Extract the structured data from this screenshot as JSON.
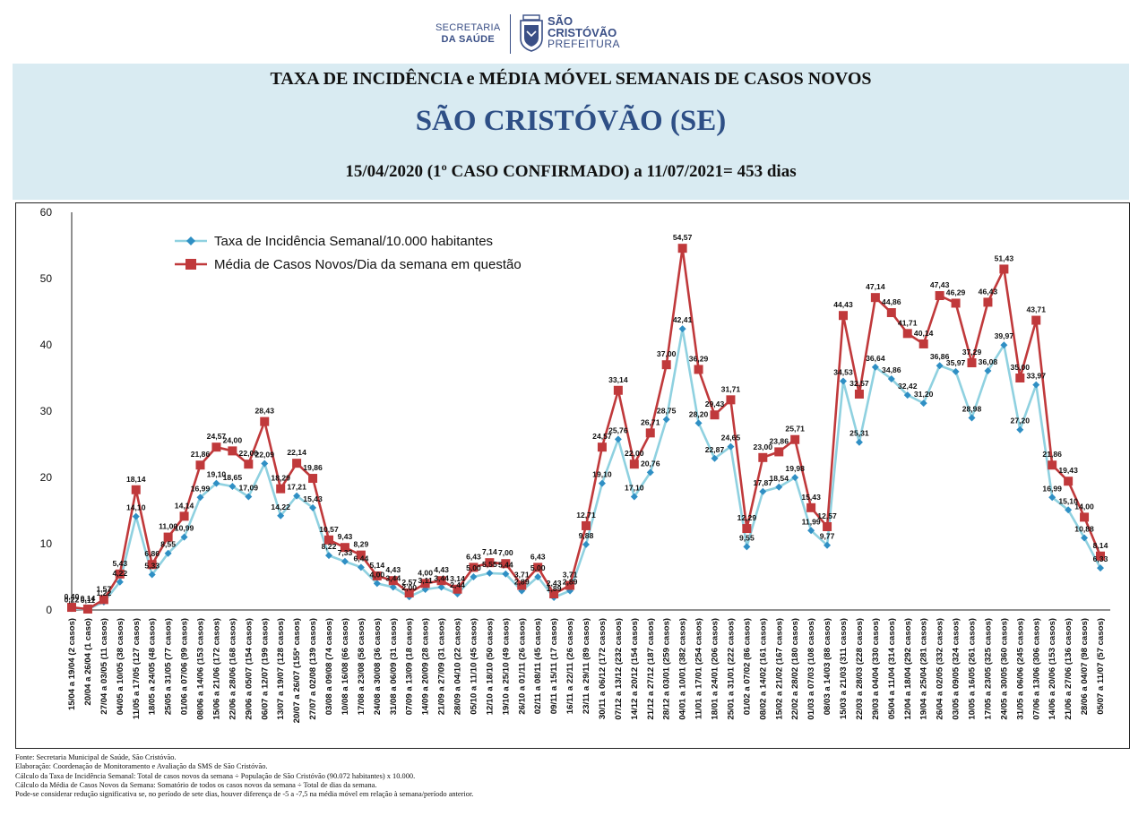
{
  "logo": {
    "secretaria_line1": "SECRETARIA",
    "secretaria_line2": "DA SAÚDE",
    "city_line1": "SÃO",
    "city_line2": "CRISTÓVÃO",
    "prefeitura": "PREFEITURA"
  },
  "header": {
    "title": "TAXA DE INCIDÊNCIA e MÉDIA MÓVEL SEMANAIS DE CASOS NOVOS",
    "city": "SÃO CRISTÓVÃO (SE)",
    "dates": "15/04/2020 (1º CASO CONFIRMADO) a 11/07/2021= 453 dias"
  },
  "colors": {
    "header_bg": "#d9ebf2",
    "title_blue": "#2e4f86",
    "incidence": "#8fd1e0",
    "incidence_marker": "#2f8fc4",
    "mean": "#c0393b"
  },
  "chart_data": {
    "type": "line",
    "ylim": [
      0,
      60
    ],
    "yticks": [
      "0",
      "10",
      "20",
      "30",
      "40",
      "50",
      "60"
    ],
    "grid": false,
    "legend_position": "top-left",
    "categories": [
      "15/04 a 19/04 (2 casos)",
      "20/04 a 26/04 (1 caso)",
      "27/04 a 03/05 (11 casos)",
      "04/05 a 10/05 (38 casos)",
      "11/05 a 17/05 (127 casos)",
      "18/05 a 24/05 (48 casos)",
      "25/05 a 31/05 (77 casos)",
      "01/06 a 07/06 (99 casos)",
      "08/06 a 14/06 (153 casos)",
      "15/06 a 21/06 (172 casos)",
      "22/06 a 28/06 (168 casos)",
      "29/06 a 05/07 (154 casos)",
      "06/07 a 12/07 (199 casos)",
      "13/07 a 19/07 (128 casos)",
      "20/07 a 26/07 (155* casos)",
      "27/07 a 02/08 (139 casos)",
      "03/08 a 09/08 (74 casos)",
      "10/08 a 16/08 (66 casos)",
      "17/08 a 23/08 (58 casos)",
      "24/08 a 30/08 (36 casos)",
      "31/08 a 06/09 (31 casos)",
      "07/09 a 13/09 (18 casos)",
      "14/09 a 20/09 (28 casos)",
      "21/09 a 27/09 (31 casos)",
      "28/09 a 04/10 (22 casos)",
      "05/10 a 11/10 (45 casos)",
      "12/10 a 18/10 (50 casos)",
      "19/10 a 25/10 (49 casos)",
      "26/10 a 01/11 (26 casos)",
      "02/11 a 08/11 (45 casos)",
      "09/11 a 15/11 (17 casos)",
      "16/11 a 22/11 (26 casos)",
      "23/11 a 29/11 (89 casos)",
      "30/11 a 06/12 (172 casos)",
      "07/12 a 13/12 (232 casos)",
      "14/12 a 20/12 (154 casos)",
      "21/12 a 27/12 (187 casos)",
      "28/12 a 03/01 (259 casos)",
      "04/01 a 10/01 (382 casos)",
      "11/01 a 17/01 (254 casos)",
      "18/01 a 24/01 (206 casos)",
      "25/01 a 31/01 (222 casos)",
      "01/02 a 07/02 (86 casos)",
      "08/02 a 14/02 (161 casos)",
      "15/02 a 21/02 (167 casos)",
      "22/02 a 28/02 (180 casos)",
      "01/03 a 07/03 (108 casos)",
      "08/03 a 14/03 (88 casos)",
      "15/03 a 21/03 (311 casos)",
      "22/03 a 28/03 (228 casos)",
      "29/03 a 04/04 (330 casos)",
      "05/04 a 11/04 (314 casos)",
      "12/04 a 18/04 (292 casos)",
      "19/04 a 25/04 (281 casos)",
      "26/04 a 02/05 (332 casos)",
      "03/05 a 09/05 (324 casos)",
      "10/05 a 16/05 (261 casos)",
      "17/05 a 23/05 (325 casos)",
      "24/05 a 30/05 (360 casos)",
      "31/05 a 06/06 (245 casos)",
      "07/06 a 13/06 (306 casos)",
      "14/06 a 20/06 (153 casos)",
      "21/06 a 27/06 (136 casos)",
      "28/06 a 04/07 (98 casos)",
      "05/07 a 11/07 (57 casos)"
    ],
    "series": [
      {
        "name": "Taxa de Incidência Semanal/10.000 habitantes",
        "values": [
          0.22,
          0.11,
          1.22,
          4.22,
          14.1,
          5.33,
          8.55,
          10.99,
          16.99,
          19.1,
          18.65,
          17.09,
          22.09,
          14.22,
          17.21,
          15.43,
          8.22,
          7.33,
          6.44,
          4.0,
          3.44,
          2.0,
          3.11,
          3.44,
          2.44,
          5.0,
          5.55,
          5.44,
          2.89,
          5.0,
          1.89,
          2.89,
          9.88,
          19.1,
          25.76,
          17.1,
          20.76,
          28.75,
          42.41,
          28.2,
          22.87,
          24.65,
          9.55,
          17.87,
          18.54,
          19.98,
          11.99,
          9.77,
          34.53,
          25.31,
          36.64,
          34.86,
          32.42,
          31.2,
          36.86,
          35.97,
          28.98,
          36.08,
          39.97,
          27.2,
          33.97,
          16.99,
          15.1,
          10.88,
          6.33
        ],
        "labels": [
          "0,22",
          "0,11",
          "1,22",
          "4,22",
          "14,10",
          "5,33",
          "8,55",
          "10,99",
          "16,99",
          "19,10",
          "18,65",
          "17,09",
          "22,09",
          "14,22",
          "17,21",
          "15,43",
          "8,22",
          "7,33",
          "6,44",
          "4,00",
          "3,44",
          "2,00",
          "3,11",
          "3,44",
          "2,44",
          "5,00",
          "5,55",
          "5,44",
          "2,89",
          "5,00",
          "1,89",
          "2,89",
          "9,88",
          "19,10",
          "25,76",
          "17,10",
          "20,76",
          "28,75",
          "42,41",
          "28,20",
          "22,87",
          "24,65",
          "9,55",
          "17,87",
          "18,54",
          "19,98",
          "11,99",
          "9,77",
          "34,53",
          "25,31",
          "36,64",
          "34,86",
          "32,42",
          "31,20",
          "36,86",
          "35,97",
          "28,98",
          "36,08",
          "39,97",
          "27,20",
          "33,97",
          "16,99",
          "15,10",
          "10,88",
          "6,33"
        ]
      },
      {
        "name": "Média de Casos Novos/Dia da semana em questão",
        "values": [
          0.4,
          0.14,
          1.57,
          5.43,
          18.14,
          6.86,
          11.0,
          14.14,
          21.86,
          24.57,
          24.0,
          22.0,
          28.43,
          18.29,
          22.14,
          19.86,
          10.57,
          9.43,
          8.29,
          5.14,
          4.43,
          2.57,
          4.0,
          4.43,
          3.14,
          6.43,
          7.14,
          7.0,
          3.71,
          6.43,
          2.43,
          3.71,
          12.71,
          24.57,
          33.14,
          22.0,
          26.71,
          37.0,
          54.57,
          36.29,
          29.43,
          31.71,
          12.29,
          23.0,
          23.86,
          25.71,
          15.43,
          12.57,
          44.43,
          32.57,
          47.14,
          44.86,
          41.71,
          40.14,
          47.43,
          46.29,
          37.29,
          46.43,
          51.43,
          35.0,
          43.71,
          21.86,
          19.43,
          14.0,
          8.14
        ],
        "labels": [
          "0,40",
          "0,14",
          "1,57",
          "5,43",
          "18,14",
          "6,86",
          "11,00",
          "14,14",
          "21,86",
          "24,57",
          "24,00",
          "22,00",
          "28,43",
          "18,29",
          "22,14",
          "19,86",
          "10,57",
          "9,43",
          "8,29",
          "5,14",
          "4,43",
          "2,57",
          "4,00",
          "4,43",
          "3,14",
          "6,43",
          "7,14",
          "7,00",
          "3,71",
          "6,43",
          "2,43",
          "3,71",
          "12,71",
          "24,57",
          "33,14",
          "22,00",
          "26,71",
          "37,00",
          "54,57",
          "36,29",
          "29,43",
          "31,71",
          "12,29",
          "23,00",
          "23,86",
          "25,71",
          "15,43",
          "12,57",
          "44,43",
          "32,57",
          "47,14",
          "44,86",
          "41,71",
          "40,14",
          "47,43",
          "46,29",
          "37,29",
          "46,43",
          "51,43",
          "35,00",
          "43,71",
          "21,86",
          "19,43",
          "14,00",
          "8,14"
        ]
      }
    ]
  },
  "footnotes": [
    "Fonte: Secretaria Municipal de Saúde, São Cristóvão.",
    "Elaboração: Coordenação de Monitoramento e Avaliação da SMS de São Cristóvão.",
    "Cálculo da Taxa de Incidência Semanal: Total de casos novos da semana ÷ População de São Cristóvão (90.072 habitantes) x 10.000.",
    "Cálculo da Média de Casos Novos da Semana: Somatório de todos os casos novos da semana ÷ Total de dias da semana.",
    "Pode-se considerar redução significativa se, no período de sete dias, houver diferença de -5 a -7,5 na média móvel em relação à semana/período anterior."
  ]
}
